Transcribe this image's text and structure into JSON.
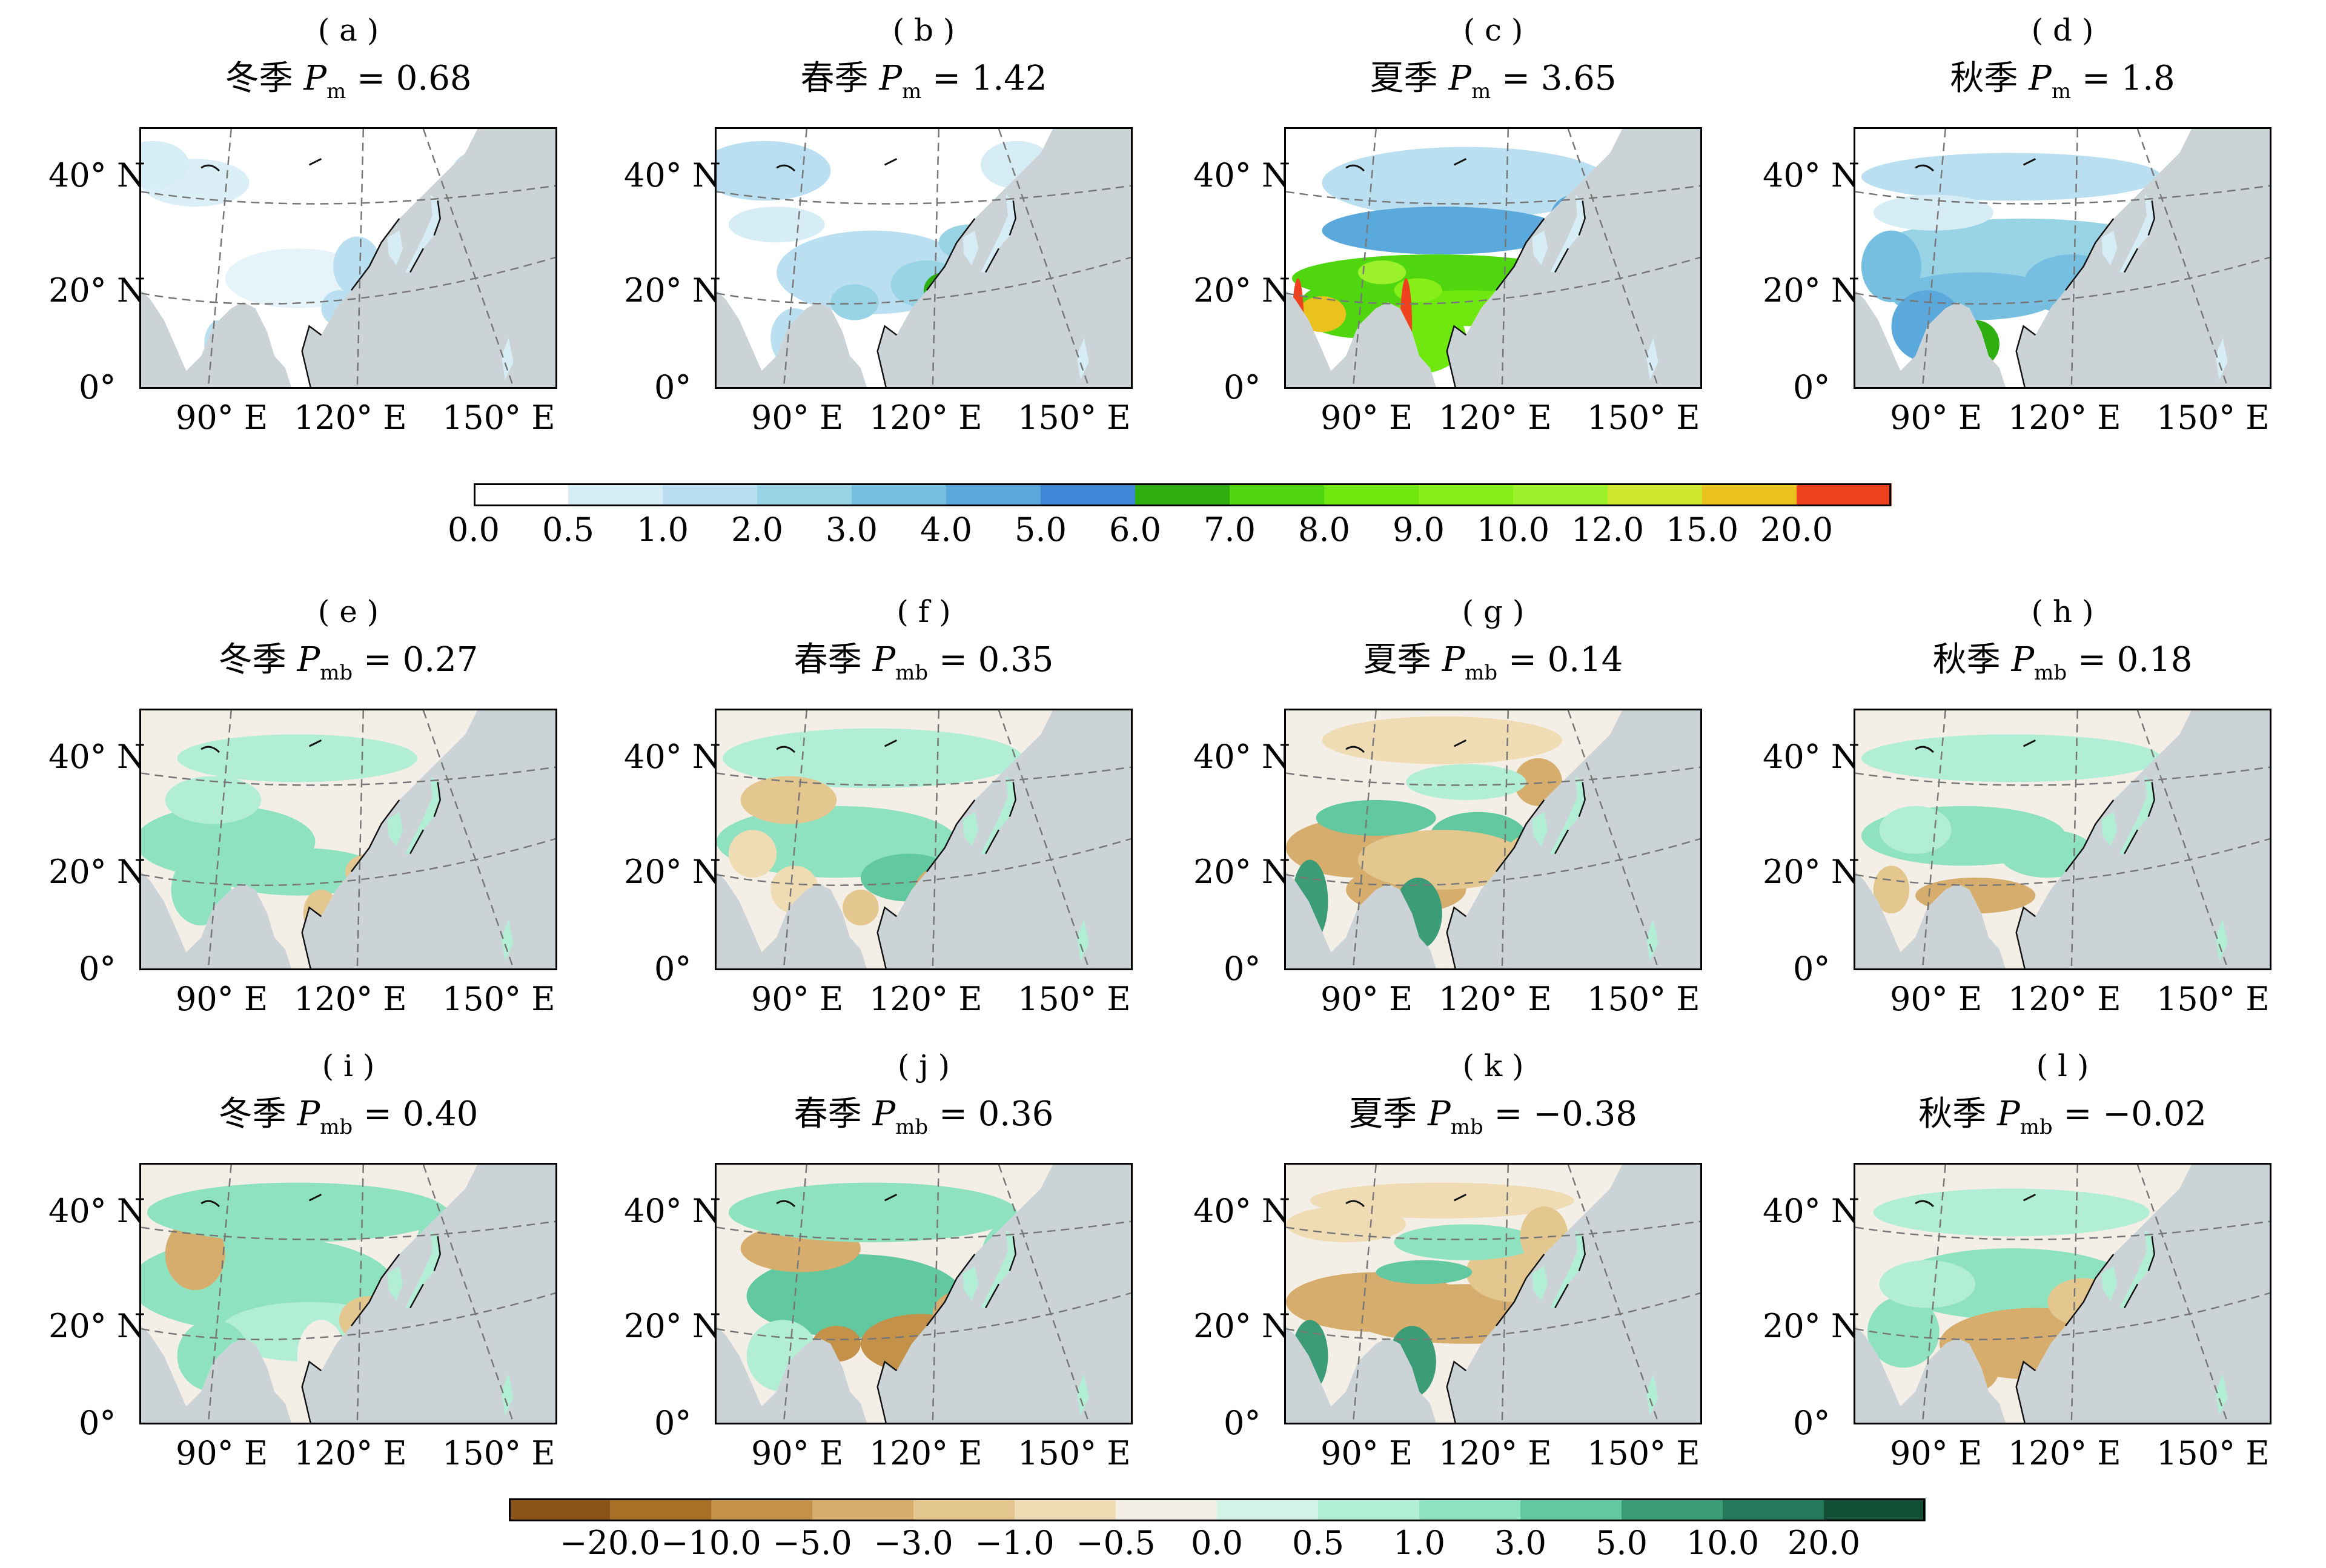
{
  "panels": [
    {
      "letter": "(a)",
      "season": "冬季",
      "var": "P",
      "sub": "m",
      "value": "0.68",
      "scheme": "precip",
      "pattern": "winter"
    },
    {
      "letter": "(b)",
      "season": "春季",
      "var": "P",
      "sub": "m",
      "value": "1.42",
      "scheme": "precip",
      "pattern": "spring"
    },
    {
      "letter": "(c)",
      "season": "夏季",
      "var": "P",
      "sub": "m",
      "value": "3.65",
      "scheme": "precip",
      "pattern": "summer"
    },
    {
      "letter": "(d)",
      "season": "秋季",
      "var": "P",
      "sub": "m",
      "value": "1.8",
      "scheme": "precip",
      "pattern": "autumn"
    },
    {
      "letter": "(e)",
      "season": "冬季",
      "var": "P",
      "sub": "mb",
      "value": "0.27",
      "scheme": "bias",
      "pattern": "bias_winter"
    },
    {
      "letter": "(f)",
      "season": "春季",
      "var": "P",
      "sub": "mb",
      "value": "0.35",
      "scheme": "bias",
      "pattern": "bias_spring"
    },
    {
      "letter": "(g)",
      "season": "夏季",
      "var": "P",
      "sub": "mb",
      "value": "0.14",
      "scheme": "bias",
      "pattern": "bias_summer"
    },
    {
      "letter": "(h)",
      "season": "秋季",
      "var": "P",
      "sub": "mb",
      "value": "0.18",
      "scheme": "bias",
      "pattern": "bias_autumn"
    },
    {
      "letter": "(i)",
      "season": "冬季",
      "var": "P",
      "sub": "mb",
      "value": "0.40",
      "scheme": "bias",
      "pattern": "bias_winter2"
    },
    {
      "letter": "(j)",
      "season": "春季",
      "var": "P",
      "sub": "mb",
      "value": "0.36",
      "scheme": "bias",
      "pattern": "bias_spring2"
    },
    {
      "letter": "(k)",
      "season": "夏季",
      "var": "P",
      "sub": "mb",
      "value": "-0.38",
      "scheme": "bias",
      "pattern": "bias_summer2"
    },
    {
      "letter": "(l)",
      "season": "秋季",
      "var": "P",
      "sub": "mb",
      "value": "-0.02",
      "scheme": "bias",
      "pattern": "bias_autumn2"
    }
  ],
  "axes": {
    "lat_labels": [
      "40° N",
      "20° N",
      "0°"
    ],
    "lon_labels": [
      "90° E",
      "120° E",
      "150° E"
    ]
  },
  "colorbar_precip": {
    "labels": [
      "0.0",
      "0.5",
      "1.0",
      "2.0",
      "3.0",
      "4.0",
      "5.0",
      "6.0",
      "7.0",
      "8.0",
      "9.0",
      "10.0",
      "12.0",
      "15.0",
      "20.0"
    ],
    "colors": [
      "#ffffff",
      "#d6edf5",
      "#b9dff0",
      "#98d4e6",
      "#76bfe0",
      "#5aa8dc",
      "#3f88d8",
      "#2fae12",
      "#4fd60e",
      "#6ee80e",
      "#86ef18",
      "#9cf22a",
      "#cfe62e",
      "#e9c21e",
      "#f0411e"
    ]
  },
  "colorbar_bias": {
    "labels": [
      "-20.0",
      "-10.0",
      "-5.0",
      "-3.0",
      "-1.0",
      "-0.5",
      "0.0",
      "0.5",
      "1.0",
      "3.0",
      "5.0",
      "10.0",
      "20.0"
    ],
    "colors": [
      "#8a5418",
      "#a86f27",
      "#c4914a",
      "#d6ad6d",
      "#e3c78f",
      "#efdcb5",
      "#f4efe6",
      "#d2f3e6",
      "#b2eed6",
      "#8fe2c0",
      "#62c8a0",
      "#3c9c78",
      "#26785a",
      "#134e36"
    ]
  },
  "colors": {
    "ocean": "#cbd3d6",
    "grid": "#777777",
    "coast": "#111111"
  }
}
